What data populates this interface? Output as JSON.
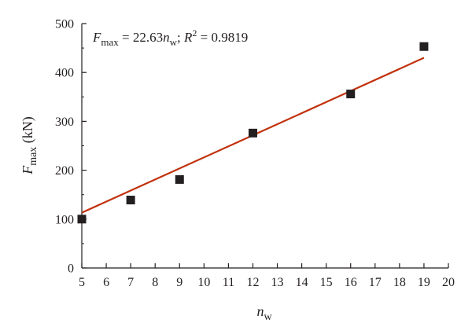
{
  "chart_data": {
    "type": "scatter",
    "x": [
      5,
      7,
      9,
      12,
      16,
      19
    ],
    "y": [
      100,
      139,
      181,
      276,
      356,
      453
    ],
    "fit": {
      "slope": 22.63,
      "x_range": [
        5,
        19
      ],
      "color": "#c1310c"
    },
    "equation": {
      "y_symbol": "F",
      "y_sub": "max",
      "equals_value": " = 22.63",
      "x_symbol": "n",
      "x_sub": "w",
      "sep": "; ",
      "r_symbol": "R",
      "r_sup": "2",
      "r_value": " = 0.9819"
    },
    "xlabel": {
      "symbol": "n",
      "sub": "w"
    },
    "ylabel": {
      "symbol": "F",
      "sub": "max",
      "unit": " (kN)"
    },
    "xlim": [
      5,
      20
    ],
    "ylim": [
      0,
      500
    ],
    "xticks": [
      5,
      6,
      7,
      8,
      9,
      10,
      11,
      12,
      13,
      14,
      15,
      16,
      17,
      18,
      19,
      20
    ],
    "yticks": [
      0,
      100,
      200,
      300,
      400,
      500
    ],
    "marker_color": "#231f20",
    "axis_color": "#231f20",
    "grid": false
  }
}
